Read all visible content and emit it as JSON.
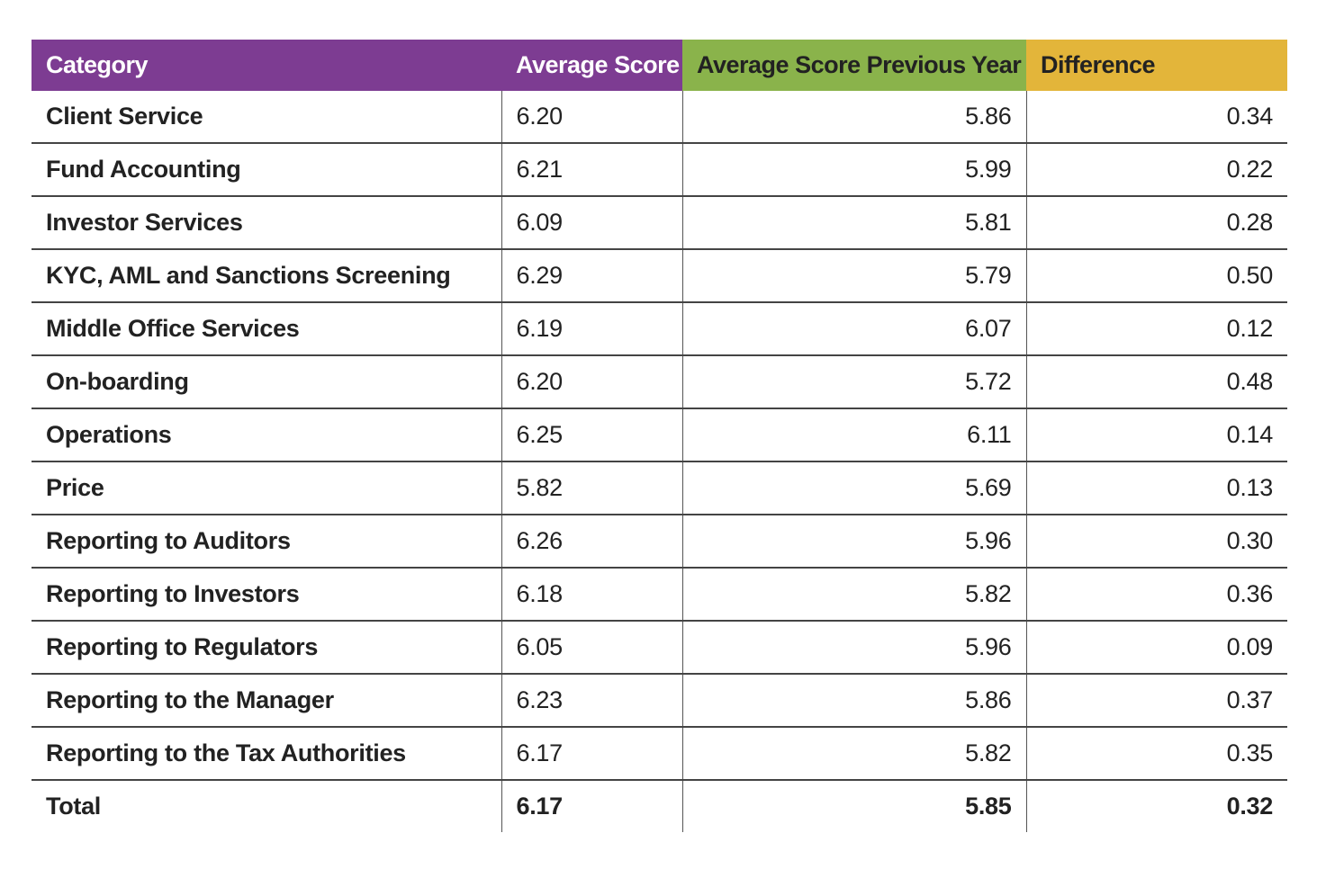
{
  "table": {
    "header": [
      "Category",
      "Average Score",
      "Average Score Previous Year",
      "Difference"
    ],
    "rows": [
      [
        "Client Service",
        "6.20",
        "5.86",
        "0.34"
      ],
      [
        "Fund Accounting",
        "6.21",
        "5.99",
        "0.22"
      ],
      [
        "Investor Services",
        "6.09",
        "5.81",
        "0.28"
      ],
      [
        "KYC, AML and Sanctions Screening",
        "6.29",
        "5.79",
        "0.50"
      ],
      [
        "Middle Office Services",
        "6.19",
        "6.07",
        "0.12"
      ],
      [
        "On-boarding",
        "6.20",
        "5.72",
        "0.48"
      ],
      [
        "Operations",
        "6.25",
        "6.11",
        "0.14"
      ],
      [
        "Price",
        "5.82",
        "5.69",
        "0.13"
      ],
      [
        "Reporting to Auditors",
        "6.26",
        "5.96",
        "0.30"
      ],
      [
        "Reporting to Investors",
        "6.18",
        "5.82",
        "0.36"
      ],
      [
        "Reporting to Regulators",
        "6.05",
        "5.96",
        "0.09"
      ],
      [
        "Reporting to the Manager",
        "6.23",
        "5.86",
        "0.37"
      ],
      [
        "Reporting to the Tax Authorities",
        "6.17",
        "5.82",
        "0.35"
      ],
      [
        "Total",
        "6.17",
        "5.85",
        "0.32"
      ]
    ]
  }
}
